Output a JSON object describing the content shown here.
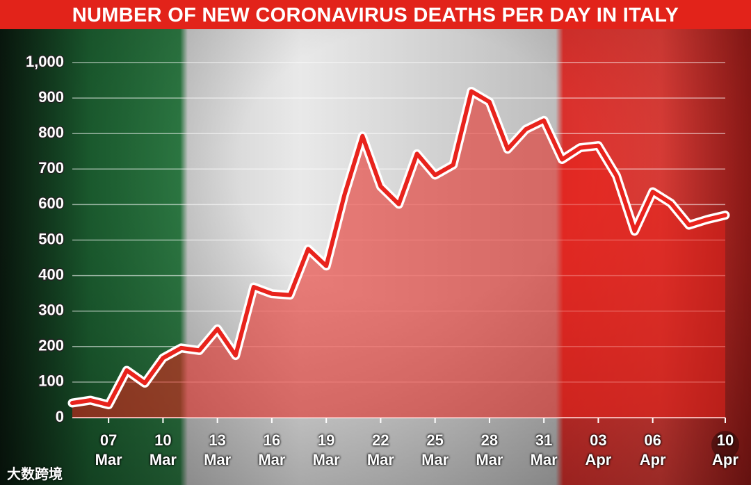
{
  "title": "NUMBER OF NEW CORONAVIRUS DEATHS PER DAY IN ITALY",
  "watermark": "大数跨境",
  "chart_data": {
    "type": "line",
    "categories": [
      null,
      null,
      "07 Mar",
      null,
      null,
      "10 Mar",
      null,
      null,
      "13 Mar",
      null,
      null,
      "16 Mar",
      null,
      null,
      "19 Mar",
      null,
      null,
      "22 Mar",
      null,
      null,
      "25 Mar",
      null,
      null,
      "28 Mar",
      null,
      null,
      "31 Mar",
      null,
      null,
      "03 Apr",
      null,
      null,
      "06 Apr",
      null,
      null,
      null,
      "10 Apr"
    ],
    "series": [
      {
        "color": "#e8231c",
        "values": [
          41,
          49,
          36,
          133,
          97,
          168,
          196,
          189,
          250,
          175,
          368,
          349,
          345,
          475,
          427,
          627,
          793,
          651,
          601,
          743,
          683,
          712,
          919,
          889,
          756,
          812,
          837,
          727,
          760,
          766,
          681,
          525,
          636,
          604,
          542,
          558,
          570
        ]
      }
    ],
    "ylim": [
      0,
      1000
    ],
    "yticks": [
      0,
      100,
      200,
      300,
      400,
      500,
      600,
      700,
      800,
      900,
      {
        "value": 1000,
        "label": "1,000"
      }
    ],
    "grid": true
  }
}
